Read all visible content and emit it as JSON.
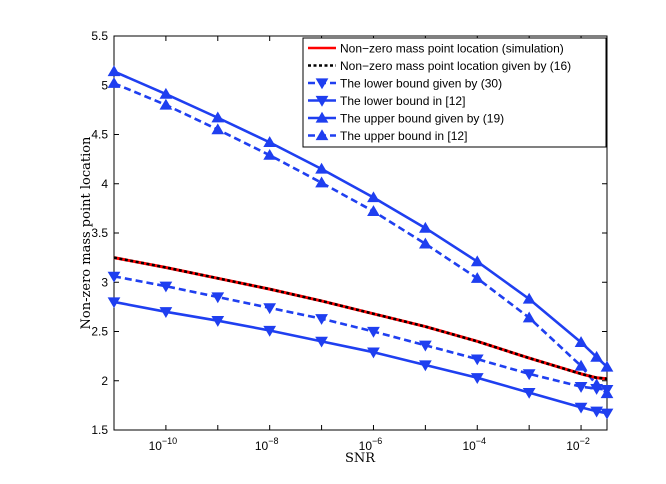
{
  "chart_data": {
    "type": "line",
    "title": "",
    "xlabel": "SNR",
    "ylabel": "Non-zero mass point location",
    "xscale": "log",
    "xlim_log10": [
      -11.0,
      -1.5
    ],
    "ylim": [
      1.5,
      5.5
    ],
    "legend_position": "top-right",
    "grid": false,
    "x_ticks": [
      {
        "exp": -10,
        "base": "10",
        "sup": "−10"
      },
      {
        "exp": -8,
        "base": "10",
        "sup": "−8"
      },
      {
        "exp": -6,
        "base": "10",
        "sup": "−6"
      },
      {
        "exp": -4,
        "base": "10",
        "sup": "−4"
      },
      {
        "exp": -2,
        "base": "10",
        "sup": "−2"
      }
    ],
    "y_ticks": [
      "1.5",
      "2",
      "2.5",
      "3",
      "3.5",
      "4",
      "4.5",
      "5",
      "5.5"
    ],
    "series": [
      {
        "name": "Non−zero mass point location (simulation)",
        "color": "#ff0000",
        "dash": "solid",
        "marker": "none",
        "log10_x": [
          -11,
          -10,
          -9,
          -8,
          -7,
          -6,
          -5,
          -4,
          -3,
          -2,
          -1.7,
          -1.5
        ],
        "y": [
          3.25,
          3.15,
          3.04,
          2.93,
          2.81,
          2.68,
          2.55,
          2.4,
          2.23,
          2.07,
          2.03,
          2.02
        ]
      },
      {
        "name": "Non−zero mass point location given by (16)",
        "color": "#000000",
        "dash": "dotted",
        "marker": "none",
        "log10_x": [
          -11,
          -10,
          -9,
          -8,
          -7,
          -6,
          -5,
          -4,
          -3,
          -2,
          -1.7,
          -1.5
        ],
        "y": [
          3.25,
          3.15,
          3.04,
          2.93,
          2.81,
          2.68,
          2.55,
          2.4,
          2.23,
          2.07,
          2.03,
          2.02
        ]
      },
      {
        "name": "The lower bound given by (30)",
        "color": "#1f3ff0",
        "dash": "dashed",
        "marker": "triangle-down",
        "log10_x": [
          -11,
          -10,
          -9,
          -8,
          -7,
          -6,
          -5,
          -4,
          -3,
          -2,
          -1.7,
          -1.5
        ],
        "y": [
          3.06,
          2.96,
          2.85,
          2.74,
          2.63,
          2.5,
          2.36,
          2.22,
          2.07,
          1.94,
          1.92,
          1.91
        ]
      },
      {
        "name": "The lower bound in [12]",
        "color": "#1f3ff0",
        "dash": "solid",
        "marker": "triangle-down",
        "log10_x": [
          -11,
          -10,
          -9,
          -8,
          -7,
          -6,
          -5,
          -4,
          -3,
          -2,
          -1.7,
          -1.5
        ],
        "y": [
          2.8,
          2.7,
          2.61,
          2.51,
          2.4,
          2.29,
          2.16,
          2.03,
          1.88,
          1.73,
          1.69,
          1.67
        ]
      },
      {
        "name": "The upper bound given by (19)",
        "color": "#1f3ff0",
        "dash": "solid",
        "marker": "triangle-up",
        "log10_x": [
          -11,
          -10,
          -9,
          -8,
          -7,
          -6,
          -5,
          -4,
          -3,
          -2,
          -1.7,
          -1.5
        ],
        "y": [
          5.14,
          4.91,
          4.67,
          4.42,
          4.15,
          3.86,
          3.55,
          3.21,
          2.83,
          2.39,
          2.24,
          2.14
        ]
      },
      {
        "name": "The upper bound in [12]",
        "color": "#1f3ff0",
        "dash": "dashed",
        "marker": "triangle-up",
        "log10_x": [
          -11,
          -10,
          -9,
          -8,
          -7,
          -6,
          -5,
          -4,
          -3,
          -2,
          -1.7,
          -1.5
        ],
        "y": [
          5.02,
          4.8,
          4.55,
          4.29,
          4.01,
          3.72,
          3.39,
          3.04,
          2.64,
          2.15,
          1.96,
          1.87
        ]
      }
    ]
  }
}
